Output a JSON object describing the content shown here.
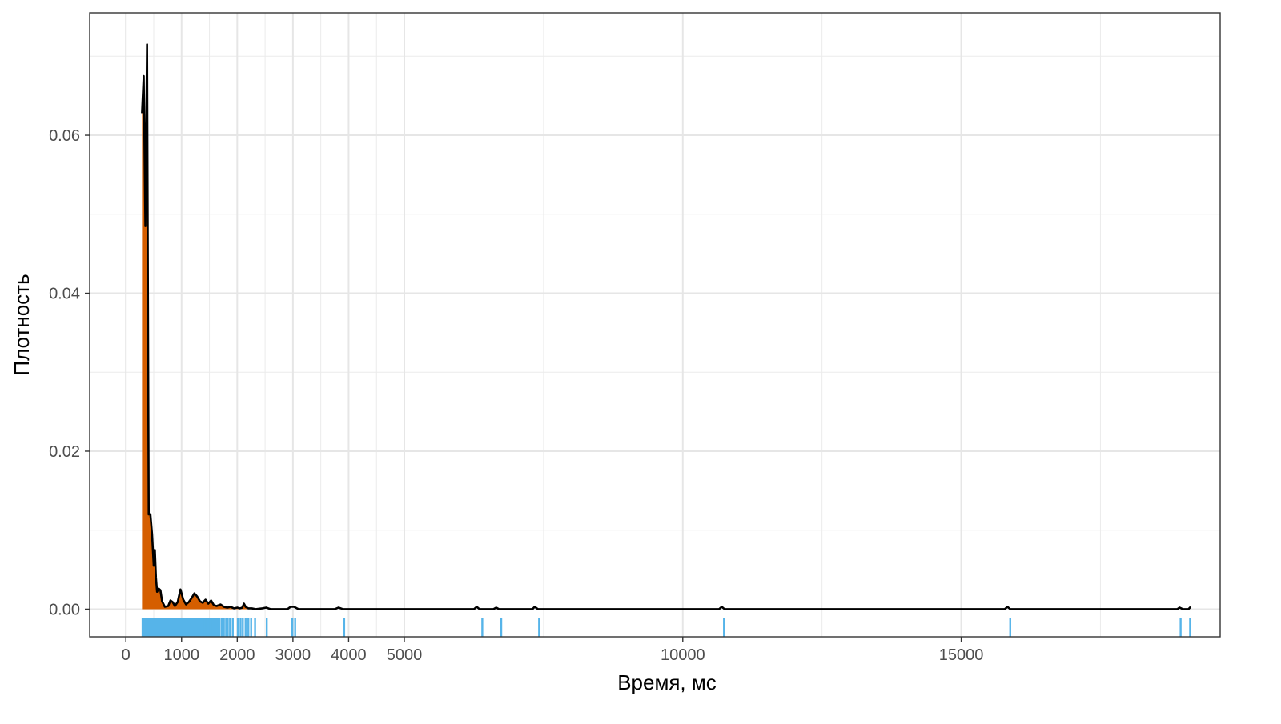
{
  "chart_data": {
    "type": "area",
    "title": "",
    "xlabel": "Время, мс",
    "ylabel": "Плотность",
    "xlim": [
      -650,
      19650
    ],
    "ylim": [
      -0.0035,
      0.0755
    ],
    "grid": true,
    "legend": "none",
    "x_ticks": [
      {
        "value": 0,
        "label": "0"
      },
      {
        "value": 1000,
        "label": "1000"
      },
      {
        "value": 2000,
        "label": "2000"
      },
      {
        "value": 3000,
        "label": "3000"
      },
      {
        "value": 4000,
        "label": "4000"
      },
      {
        "value": 5000,
        "label": "5000"
      },
      {
        "value": 10000,
        "label": "10000"
      },
      {
        "value": 15000,
        "label": "15000"
      }
    ],
    "x_minor_grid": [
      500,
      1500,
      2500,
      3500,
      4500,
      7500,
      12500,
      17500
    ],
    "y_ticks": [
      {
        "value": 0.0,
        "label": "0.00"
      },
      {
        "value": 0.02,
        "label": "0.02"
      },
      {
        "value": 0.04,
        "label": "0.04"
      },
      {
        "value": 0.06,
        "label": "0.06"
      }
    ],
    "y_minor_grid": [
      0.01,
      0.03,
      0.05,
      0.07
    ],
    "fill_color": "#D55E00",
    "line_color": "#000000",
    "rug_color": "#56B4E9",
    "fill_cutoff_x": 2330,
    "density": [
      [
        290,
        0.0628
      ],
      [
        320,
        0.0675
      ],
      [
        350,
        0.0485
      ],
      [
        380,
        0.0715
      ],
      [
        410,
        0.012
      ],
      [
        440,
        0.012
      ],
      [
        470,
        0.0095
      ],
      [
        500,
        0.0055
      ],
      [
        520,
        0.0075
      ],
      [
        540,
        0.004
      ],
      [
        560,
        0.0022
      ],
      [
        590,
        0.0026
      ],
      [
        620,
        0.0024
      ],
      [
        650,
        0.001
      ],
      [
        700,
        0.0003
      ],
      [
        760,
        0.0004
      ],
      [
        800,
        0.0011
      ],
      [
        840,
        0.0009
      ],
      [
        880,
        0.0004
      ],
      [
        930,
        0.0009
      ],
      [
        980,
        0.0025
      ],
      [
        1030,
        0.0012
      ],
      [
        1080,
        0.0006
      ],
      [
        1130,
        0.0009
      ],
      [
        1180,
        0.0014
      ],
      [
        1230,
        0.002
      ],
      [
        1280,
        0.0016
      ],
      [
        1330,
        0.001
      ],
      [
        1380,
        0.0008
      ],
      [
        1430,
        0.0012
      ],
      [
        1480,
        0.0007
      ],
      [
        1530,
        0.0011
      ],
      [
        1580,
        0.0005
      ],
      [
        1630,
        0.0004
      ],
      [
        1700,
        0.0006
      ],
      [
        1760,
        0.0003
      ],
      [
        1820,
        0.0002
      ],
      [
        1880,
        0.0003
      ],
      [
        1940,
        0.0001
      ],
      [
        2000,
        0.0002
      ],
      [
        2050,
        0.0001
      ],
      [
        2090,
        0.0002
      ],
      [
        2120,
        0.0007
      ],
      [
        2150,
        0.0003
      ],
      [
        2200,
        0.0001
      ],
      [
        2260,
        0.0001
      ],
      [
        2330,
        0.0
      ],
      [
        2450,
        0.0001
      ],
      [
        2520,
        0.0002
      ],
      [
        2600,
        0.0
      ],
      [
        2900,
        0.0
      ],
      [
        2960,
        0.0003
      ],
      [
        3020,
        0.0003
      ],
      [
        3100,
        0.0
      ],
      [
        3750,
        0.0
      ],
      [
        3820,
        0.0002
      ],
      [
        3900,
        0.0
      ],
      [
        6250,
        0.0
      ],
      [
        6300,
        0.0003
      ],
      [
        6350,
        0.0
      ],
      [
        6600,
        0.0
      ],
      [
        6650,
        0.0002
      ],
      [
        6700,
        0.0
      ],
      [
        7300,
        0.0
      ],
      [
        7340,
        0.0003
      ],
      [
        7400,
        0.0
      ],
      [
        10650,
        0.0
      ],
      [
        10700,
        0.0003
      ],
      [
        10750,
        0.0
      ],
      [
        15780,
        0.0
      ],
      [
        15830,
        0.0003
      ],
      [
        15880,
        0.0
      ],
      [
        18880,
        0.0
      ],
      [
        18920,
        0.0002
      ],
      [
        18980,
        0.0
      ],
      [
        19080,
        0.0
      ],
      [
        19120,
        0.0003
      ]
    ],
    "rug_values": [
      300,
      315,
      330,
      345,
      360,
      375,
      390,
      405,
      420,
      435,
      450,
      465,
      480,
      495,
      510,
      525,
      540,
      555,
      570,
      585,
      600,
      615,
      630,
      645,
      660,
      680,
      700,
      720,
      740,
      760,
      780,
      800,
      820,
      840,
      860,
      880,
      900,
      920,
      940,
      960,
      980,
      1000,
      1020,
      1040,
      1060,
      1080,
      1100,
      1120,
      1140,
      1160,
      1180,
      1200,
      1220,
      1240,
      1260,
      1280,
      1300,
      1320,
      1340,
      1360,
      1380,
      1400,
      1420,
      1440,
      1460,
      1480,
      1500,
      1520,
      1540,
      1560,
      1580,
      1620,
      1650,
      1680,
      1720,
      1760,
      1800,
      1830,
      1870,
      1920,
      2010,
      2060,
      2100,
      2150,
      2200,
      2250,
      2320,
      2530,
      2990,
      3040,
      3920,
      6400,
      6740,
      7420,
      10740,
      15880,
      18940,
      19110
    ]
  }
}
